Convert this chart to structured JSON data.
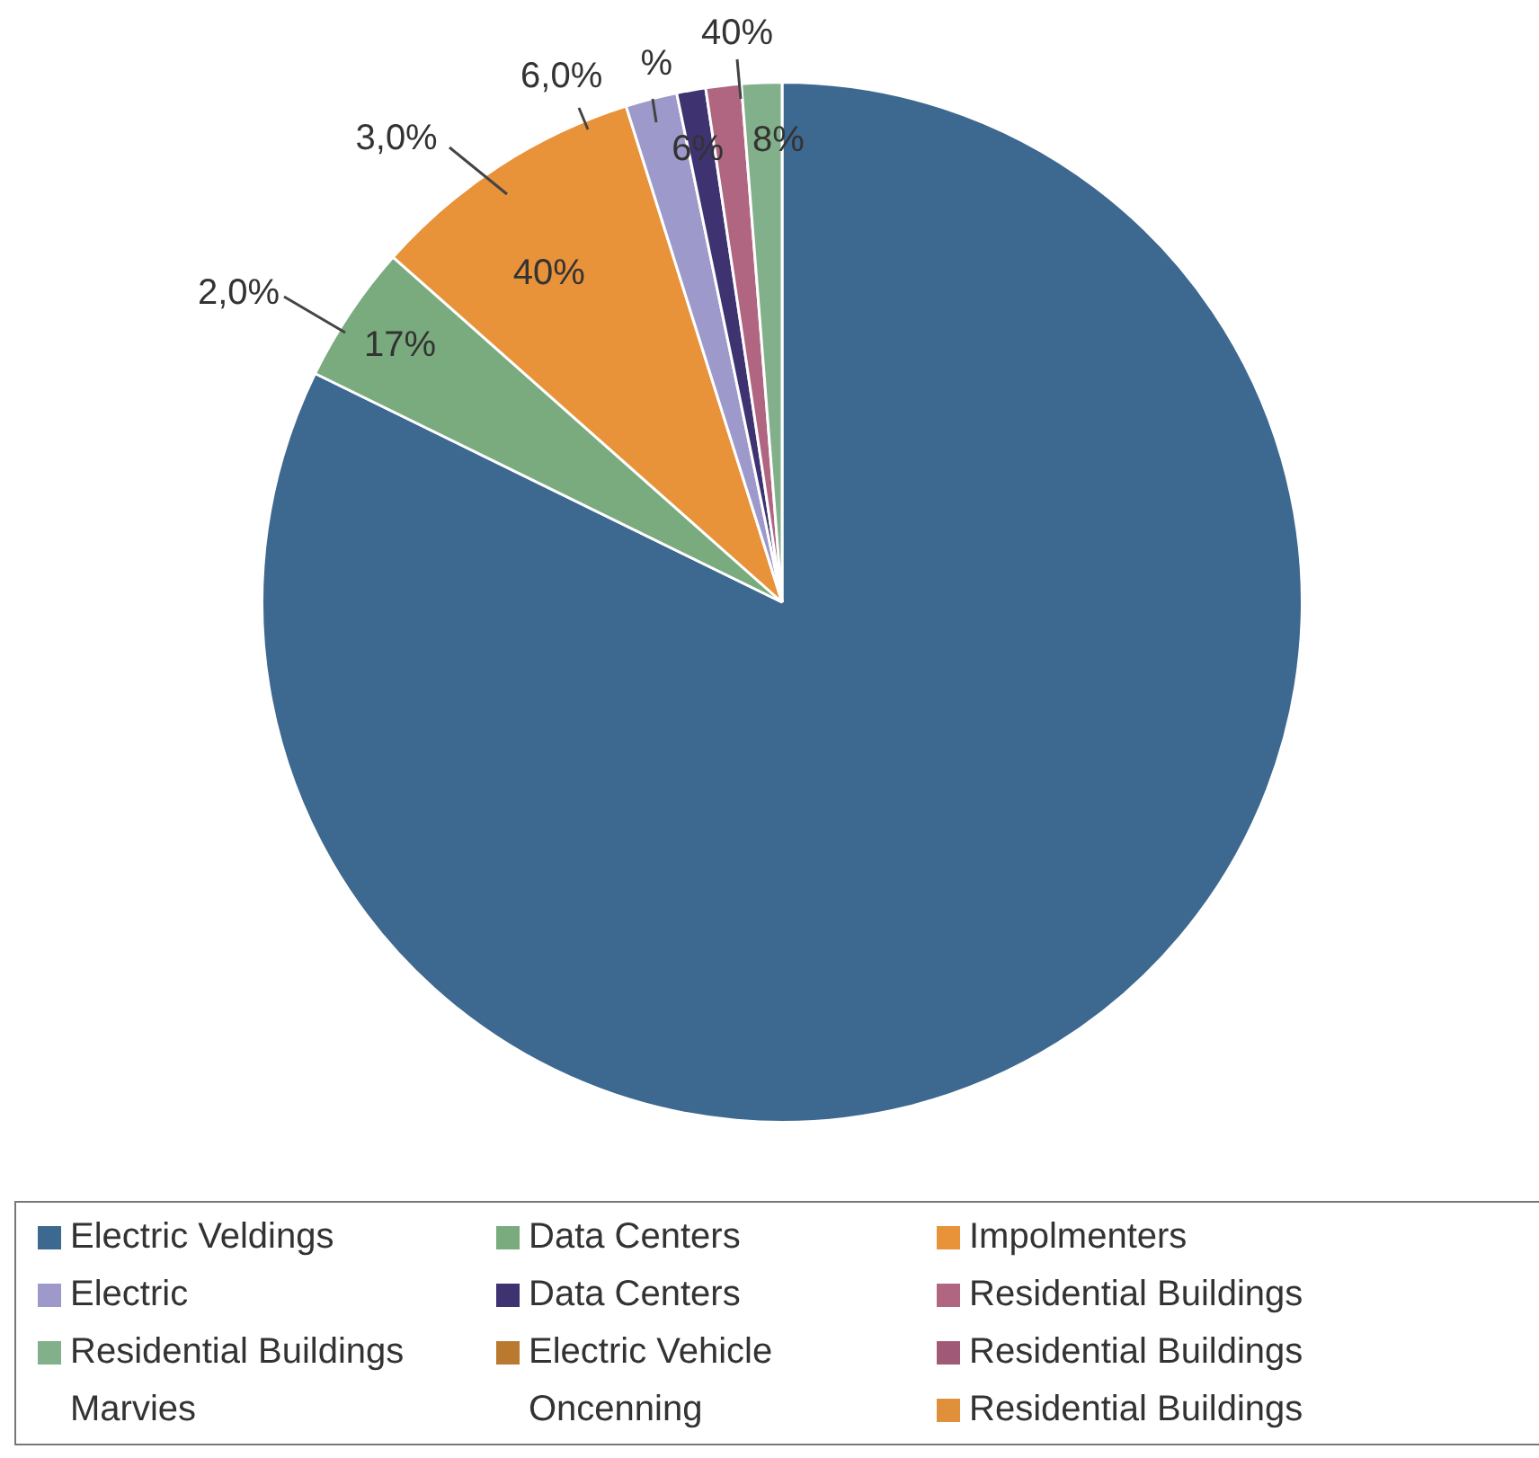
{
  "chart_data": {
    "type": "pie",
    "categories": [
      "Electric Veldings",
      "Data Centers",
      "Impolmenters",
      "Electric",
      "Data Centers",
      "Residential Buildings",
      "Residential Buildings",
      "Electric Vehicle",
      "Residential Buildings",
      "Marvies",
      "Oncenning",
      "Residential Buildings"
    ],
    "values": [
      82.25,
      4.3,
      8.6,
      1.6,
      0.9,
      1.1,
      1.25,
      null,
      null,
      null,
      null,
      null
    ],
    "colors": [
      "#3d6890",
      "#7aab7e",
      "#e8923a",
      "#9d9acb",
      "#3e3370",
      "#b06580",
      "#82b08a",
      "#b9792f",
      "#a05a78",
      null,
      null,
      "#e0903a"
    ],
    "annotations": [
      "2,0%",
      "17%",
      "3,0%",
      "40%",
      "6,0%",
      "%",
      "6%",
      "40%",
      "8%"
    ],
    "legend": "bottom"
  }
}
